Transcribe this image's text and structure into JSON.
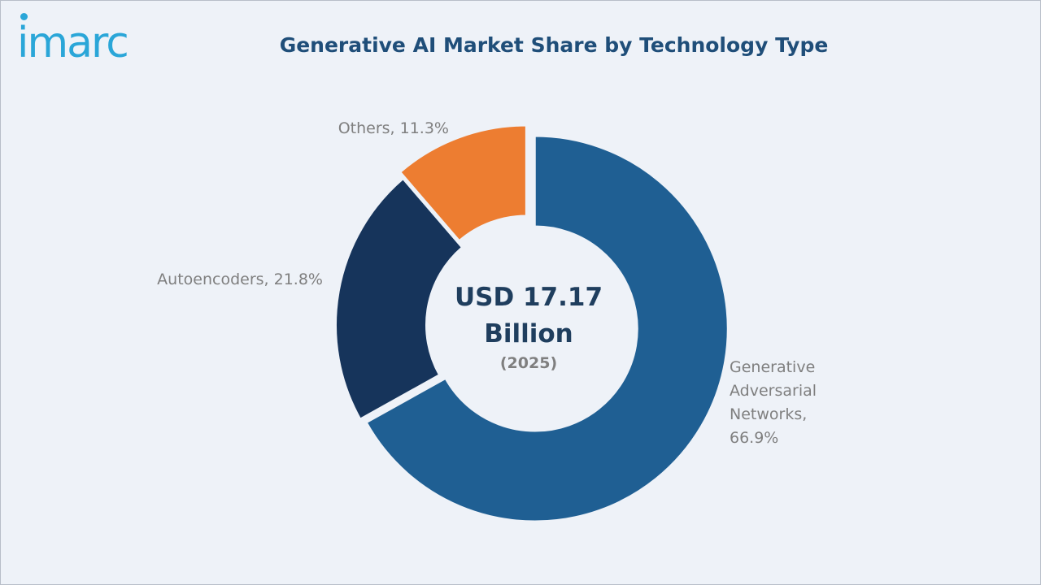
{
  "brand": {
    "logo_text": "imarc",
    "color": "#2aa6d8"
  },
  "chart_data": {
    "type": "pie",
    "variant": "donut",
    "title": "Generative AI Market Share by Technology Type",
    "center_text": {
      "line1": "USD 17.17",
      "line2": "Billion",
      "line3": "(2025)"
    },
    "slices": [
      {
        "label": "Generative Adversarial Networks",
        "value": 66.9,
        "label_lines": [
          "Generative",
          "Adversarial",
          "Networks,",
          "66.9%"
        ],
        "color": "#1f5f93",
        "exploded": true
      },
      {
        "label": "Autoencoders",
        "value": 21.8,
        "label_lines": [
          "Autoencoders, 21.8%"
        ],
        "color": "#16345b",
        "exploded": false
      },
      {
        "label": "Others",
        "value": 11.3,
        "label_lines": [
          "Others,  11.3%"
        ],
        "color": "#ed7d31",
        "exploded": true
      }
    ],
    "legend": "none",
    "data_labels": "outside"
  }
}
